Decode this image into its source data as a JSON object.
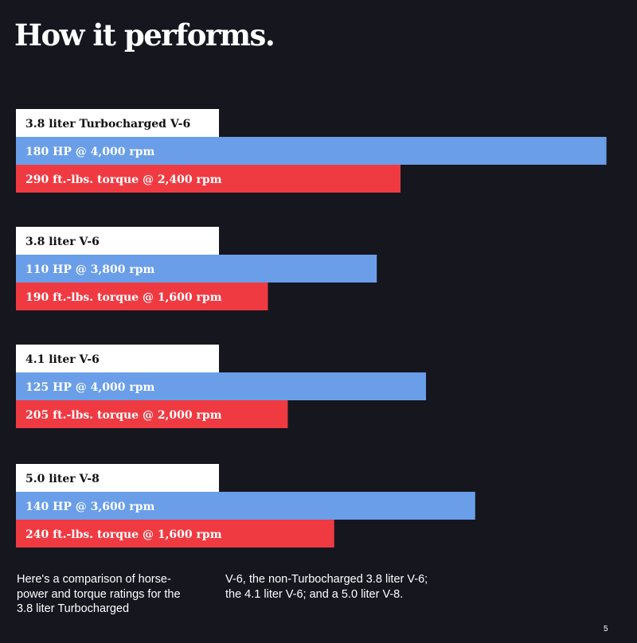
{
  "title": "How it performs.",
  "colors": {
    "background": "#16161f",
    "engine_box": "#ffffff",
    "horsepower": "#6a9ee8",
    "torque": "#f03a42",
    "engine_text": "#111111",
    "bar_text": "#ffffff"
  },
  "chart_data": {
    "type": "bar",
    "orientation": "horizontal",
    "groups": [
      {
        "engine": "3.8 liter Turbocharged V-6",
        "horsepower": {
          "value": 180,
          "label": "180 HP @ 4,000 rpm"
        },
        "torque": {
          "value": 290,
          "label": "290 ft.-lbs. torque @ 2,400 rpm"
        }
      },
      {
        "engine": "3.8 liter V-6",
        "horsepower": {
          "value": 110,
          "label": "110 HP @ 3,800 rpm"
        },
        "torque": {
          "value": 190,
          "label": "190 ft.-lbs. torque @ 1,600 rpm"
        }
      },
      {
        "engine": "4.1 liter V-6",
        "horsepower": {
          "value": 125,
          "label": "125 HP @ 4,000 rpm"
        },
        "torque": {
          "value": 205,
          "label": "205 ft.-lbs. torque @ 2,000 rpm"
        }
      },
      {
        "engine": "5.0 liter V-8",
        "horsepower": {
          "value": 140,
          "label": "140 HP @ 3,600 rpm"
        },
        "torque": {
          "value": 240,
          "label": "240 ft.-lbs. torque @ 1,600 rpm"
        }
      }
    ]
  },
  "caption": {
    "left": "Here's a comparison of horse-power and torque ratings for the 3.8 liter Turbocharged",
    "right": "V-6, the non-Turbocharged 3.8 liter V-6; the 4.1 liter V-6; and a 5.0 liter V-8."
  },
  "page_number": "5"
}
